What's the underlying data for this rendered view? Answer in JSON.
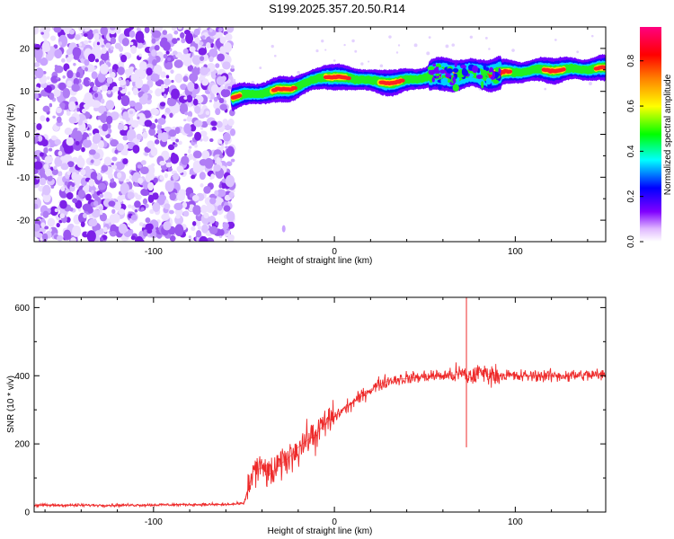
{
  "title": "S199.2025.357.20.50.R14",
  "chart_data": [
    {
      "type": "heatmap",
      "name": "spectrogram",
      "xlabel": "Height of straight line (km)",
      "ylabel": "Frequency (Hz)",
      "xlim": [
        -166,
        150
      ],
      "ylim": [
        -25,
        25
      ],
      "xticks": [
        -100,
        0,
        100
      ],
      "yticks": [
        -20,
        -10,
        0,
        10,
        20
      ],
      "grid": false,
      "noise_region_x": [
        -166,
        -56
      ],
      "signal_start_x": -56,
      "signal_track": [
        {
          "x": -56,
          "y": 8.7
        },
        {
          "x": -45,
          "y": 9.4
        },
        {
          "x": -35,
          "y": 10.0
        },
        {
          "x": -25,
          "y": 10.6
        },
        {
          "x": -15,
          "y": 12.0
        },
        {
          "x": -5,
          "y": 13.6
        },
        {
          "x": 5,
          "y": 13.0
        },
        {
          "x": 15,
          "y": 13.0
        },
        {
          "x": 25,
          "y": 12.0
        },
        {
          "x": 35,
          "y": 12.3
        },
        {
          "x": 45,
          "y": 12.8
        },
        {
          "x": 55,
          "y": 14.0
        },
        {
          "x": 65,
          "y": 13.8
        },
        {
          "x": 75,
          "y": 14.2
        },
        {
          "x": 85,
          "y": 13.8
        },
        {
          "x": 95,
          "y": 14.4
        },
        {
          "x": 105,
          "y": 14.7
        },
        {
          "x": 115,
          "y": 15.0
        },
        {
          "x": 125,
          "y": 15.0
        },
        {
          "x": 135,
          "y": 15.2
        },
        {
          "x": 150,
          "y": 15.3
        }
      ],
      "colorbar": {
        "label": "Normalized spectral amplitude",
        "range": [
          0,
          0.95
        ],
        "ticks": [
          0.0,
          0.2,
          0.4,
          0.6,
          0.8
        ]
      }
    },
    {
      "type": "line",
      "name": "snr",
      "xlabel": "Height of straight line (km)",
      "ylabel": "SNR (10 * v/v)",
      "xlim": [
        -166,
        150
      ],
      "ylim": [
        0,
        630
      ],
      "xticks": [
        -100,
        0,
        100
      ],
      "yticks": [
        0,
        200,
        400,
        600
      ],
      "grid": false,
      "series": [
        {
          "name": "SNR",
          "color": "#ee2a2a",
          "x": [
            -166,
            -140,
            -120,
            -100,
            -80,
            -60,
            -50,
            -45,
            -40,
            -35,
            -30,
            -25,
            -20,
            -15,
            -10,
            -5,
            0,
            5,
            10,
            15,
            20,
            25,
            30,
            35,
            40,
            45,
            50,
            55,
            60,
            65,
            70,
            73,
            75,
            80,
            85,
            90,
            95,
            100,
            110,
            120,
            130,
            140,
            150
          ],
          "y": [
            20,
            20,
            20,
            21,
            22,
            22,
            25,
            120,
            130,
            110,
            140,
            160,
            190,
            210,
            230,
            260,
            280,
            300,
            320,
            340,
            360,
            375,
            385,
            390,
            392,
            395,
            398,
            400,
            400,
            402,
            405,
            400,
            395,
            410,
            405,
            400,
            402,
            398,
            400,
            400,
            400,
            402,
            402
          ]
        }
      ],
      "annotations": [
        {
          "x": 73,
          "y": 630,
          "note": "spike"
        },
        {
          "x": 73,
          "y": 190,
          "note": "dip"
        }
      ]
    }
  ]
}
